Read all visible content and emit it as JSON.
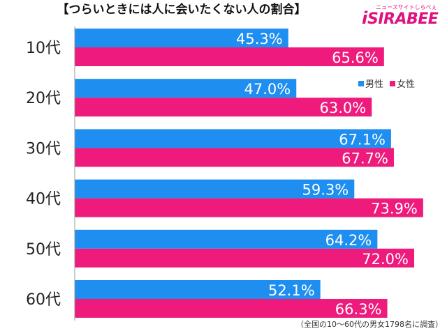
{
  "title": "【つらいときには人に会いたくない人の割合】",
  "logo": {
    "tagline": "ニュースサイトしらべぇ",
    "brand": "SIRABEE"
  },
  "footnote": "（全国の10～60代の男女1798名に調査）",
  "chart_data": {
    "type": "bar",
    "orientation": "horizontal",
    "title": "【つらいときには人に会いたくない人の割合】",
    "categories": [
      "10代",
      "20代",
      "30代",
      "40代",
      "50代",
      "60代"
    ],
    "series": [
      {
        "name": "男性",
        "color": "#1e8ff0",
        "values": [
          45.3,
          47.0,
          67.1,
          59.3,
          64.2,
          52.1
        ]
      },
      {
        "name": "女性",
        "color": "#ee1a7c",
        "values": [
          65.6,
          63.0,
          67.7,
          73.9,
          72.0,
          66.3
        ]
      }
    ],
    "value_labels": [
      [
        "45.3%",
        "47.0%",
        "67.1%",
        "59.3%",
        "64.2%",
        "52.1%"
      ],
      [
        "65.6%",
        "63.0%",
        "67.7%",
        "73.9%",
        "72.0%",
        "66.3%"
      ]
    ],
    "xlim": [
      0,
      80
    ],
    "grid": false,
    "legend_position": "top-right"
  }
}
